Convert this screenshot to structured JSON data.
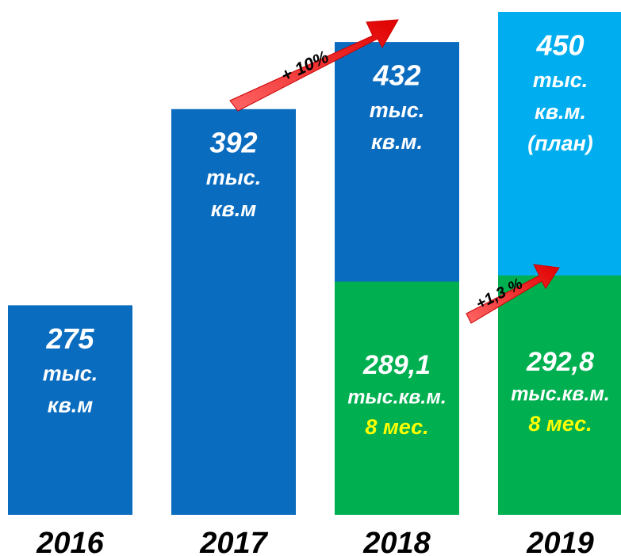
{
  "chart_data": {
    "type": "bar",
    "categories": [
      "2016",
      "2017",
      "2018",
      "2019"
    ],
    "values": [
      275,
      392,
      432,
      450
    ],
    "colors": [
      "#0a6cbf",
      "#0a6cbf",
      "#0a6cbf",
      "#00aeef"
    ],
    "units": [
      [
        "тыс.",
        "кв.м"
      ],
      [
        "тыс.",
        "кв.м"
      ],
      [
        "тыс.",
        "кв.м."
      ],
      [
        "тыс.",
        "кв.м.",
        "(план)"
      ]
    ],
    "ylim": [
      150,
      450
    ],
    "overlay": {
      "values": [
        null,
        null,
        289.1,
        292.8
      ],
      "value_labels": [
        null,
        null,
        "289,1",
        "292,8"
      ],
      "units": [
        null,
        null,
        "тыс.кв.м.",
        "тыс.кв.м."
      ],
      "period": "8 мес.",
      "color": "#00b050"
    },
    "annotations": [
      "+ 10%",
      "+1,3 %"
    ]
  }
}
